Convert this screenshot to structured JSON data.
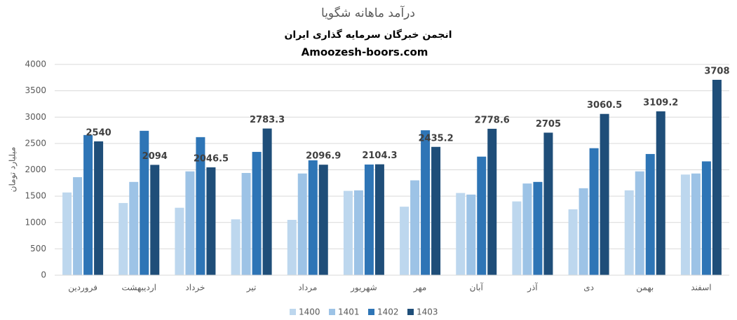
{
  "chart_data": {
    "type": "bar",
    "title": "درآمد ماهانه شگویا",
    "subtitle": "انجمن خبرگان سرمایه گذاری ایران",
    "source": "Amoozesh-boors.com",
    "y_label": "میلیارد تومان",
    "categories": [
      "فروردین",
      "اردیبهشت",
      "خرداد",
      "تیر",
      "مرداد",
      "شهریور",
      "مهر",
      "آبان",
      "آذر",
      "دی",
      "بهمن",
      "اسفند"
    ],
    "series": [
      {
        "name": "1400",
        "color": "#bdd7ee",
        "values": [
          1570,
          1370,
          1280,
          1060,
          1050,
          1600,
          1300,
          1560,
          1400,
          1250,
          1610,
          1910
        ]
      },
      {
        "name": "1401",
        "color": "#9dc3e6",
        "values": [
          1860,
          1770,
          1970,
          1940,
          1930,
          1610,
          1800,
          1530,
          1740,
          1650,
          1970,
          1930
        ]
      },
      {
        "name": "1402",
        "color": "#2e75b6",
        "values": [
          2660,
          2740,
          2620,
          2340,
          2180,
          2100,
          2750,
          2250,
          1770,
          2410,
          2300,
          2160
        ]
      },
      {
        "name": "1403",
        "color": "#1f4e79",
        "show_labels": true,
        "values": [
          2540,
          2094,
          2046.5,
          2783.3,
          2096.9,
          2104.3,
          2435.2,
          2778.6,
          2705,
          3060.5,
          3109.2,
          3708
        ]
      }
    ],
    "ylim": [
      0,
      4000
    ],
    "yticks": [
      0,
      500,
      1000,
      1500,
      2000,
      2500,
      3000,
      3500,
      4000
    ],
    "grid": true,
    "legend": "bottom"
  }
}
